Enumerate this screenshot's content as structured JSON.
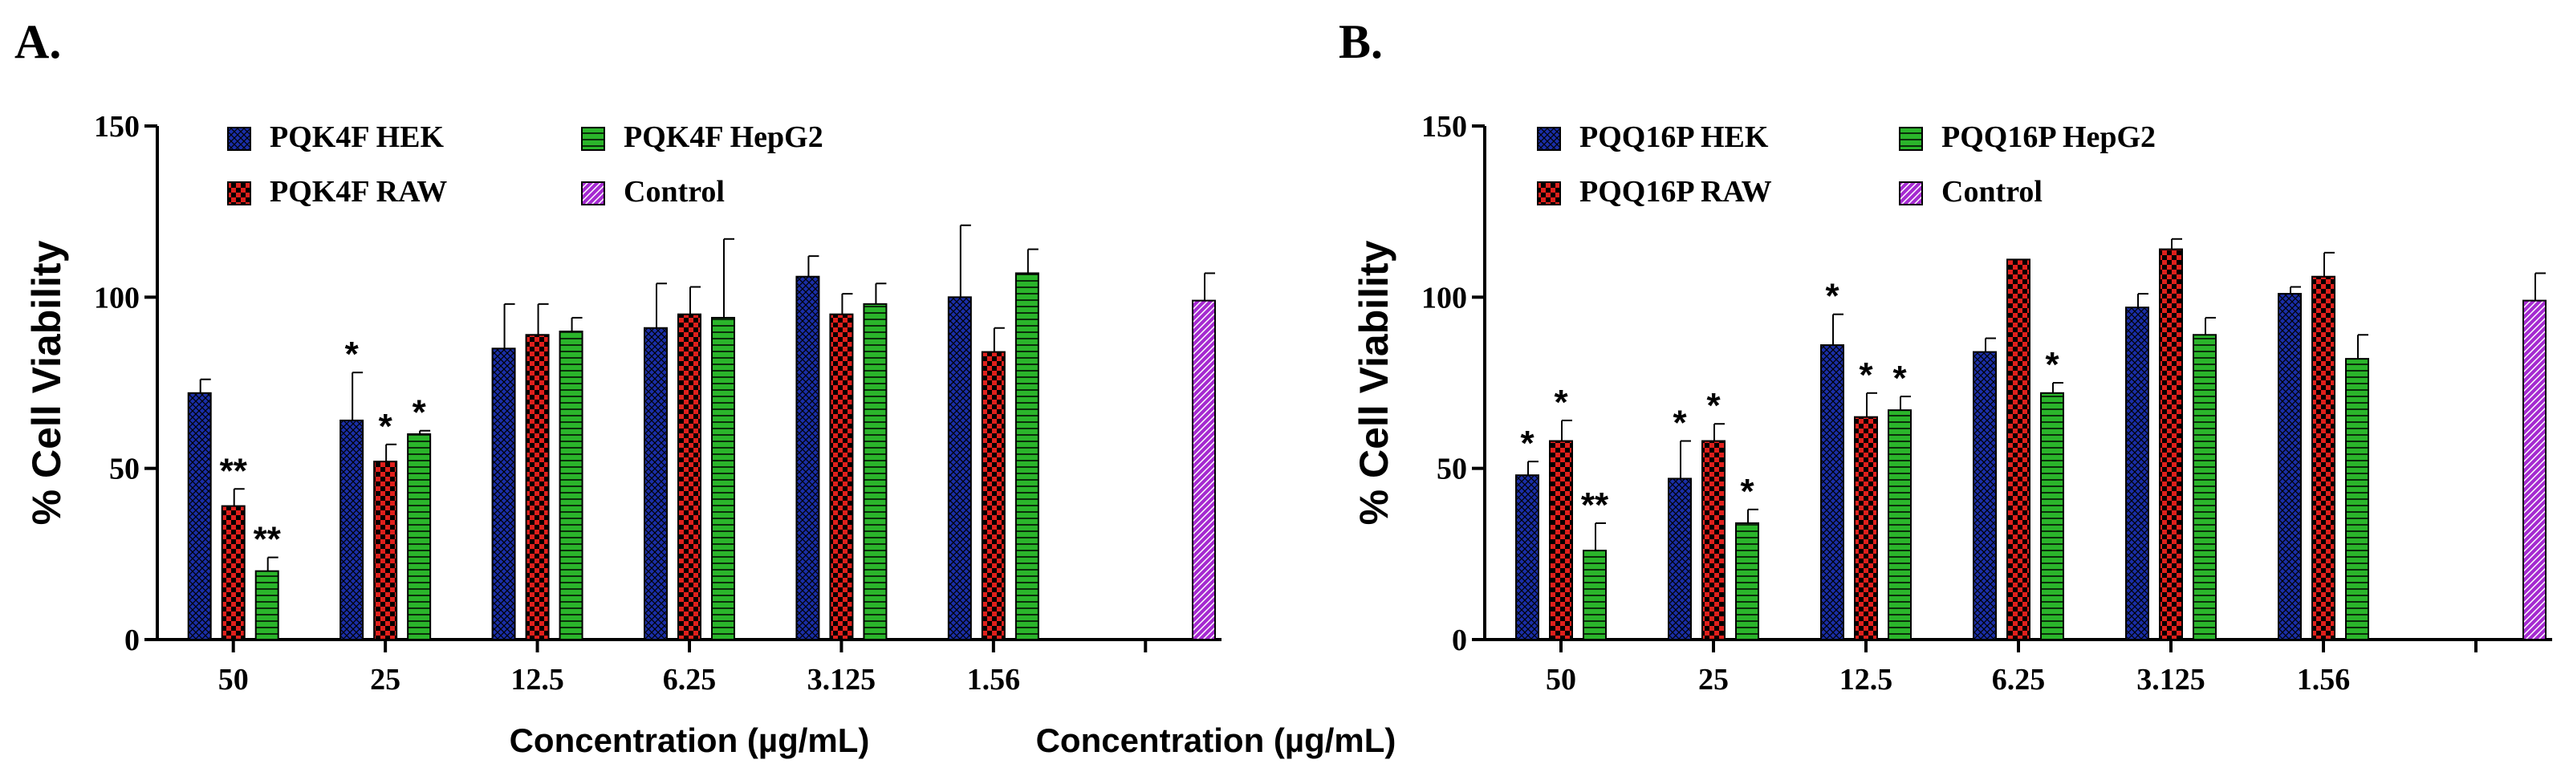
{
  "chart_data": [
    {
      "type": "bar",
      "panel_label": "A.",
      "xlabel": "Concentration (µg/mL)",
      "ylabel": "% Cell Viability",
      "ylim": [
        0,
        150
      ],
      "yticks": [
        "0",
        "50",
        "100",
        "150"
      ],
      "categories": [
        "50",
        "25",
        "12.5",
        "6.25",
        "3.125",
        "1.56"
      ],
      "series": [
        {
          "name": "PQK4F HEK",
          "color": "#1a2ea8",
          "pattern": "cross",
          "values": [
            72,
            64,
            85,
            91,
            106,
            100
          ],
          "errors": [
            4,
            14,
            13,
            13,
            6,
            21
          ],
          "significance": [
            "",
            "*",
            "",
            "",
            "",
            ""
          ]
        },
        {
          "name": "PQK4F RAW",
          "color": "#e0201c",
          "pattern": "checker",
          "values": [
            39,
            52,
            89,
            95,
            95,
            84
          ],
          "errors": [
            5,
            5,
            9,
            8,
            6,
            7
          ],
          "significance": [
            "**",
            "*",
            "",
            "",
            "",
            ""
          ]
        },
        {
          "name": "PQK4F HepG2",
          "color": "#2bb52b",
          "pattern": "hlines",
          "values": [
            20,
            60,
            90,
            94,
            98,
            107
          ],
          "errors": [
            4,
            1,
            4,
            23,
            6,
            7
          ],
          "significance": [
            "**",
            "*",
            "",
            "",
            "",
            ""
          ]
        }
      ],
      "control": {
        "name": "Control",
        "color": "#a52ad0",
        "pattern": "diag",
        "value": 99,
        "error": 8
      }
    },
    {
      "type": "bar",
      "panel_label": "B.",
      "xlabel": "Concentration (µg/mL)",
      "ylabel": "% Cell Viability",
      "ylim": [
        0,
        150
      ],
      "yticks": [
        "0",
        "50",
        "100",
        "150"
      ],
      "categories": [
        "50",
        "25",
        "12.5",
        "6.25",
        "3.125",
        "1.56"
      ],
      "series": [
        {
          "name": "PQQ16P HEK",
          "color": "#1a2ea8",
          "pattern": "cross",
          "values": [
            48,
            47,
            86,
            84,
            97,
            101
          ],
          "errors": [
            4,
            11,
            9,
            4,
            4,
            2
          ],
          "significance": [
            "*",
            "*",
            "*",
            "",
            "",
            ""
          ]
        },
        {
          "name": "PQQ16P RAW",
          "color": "#e0201c",
          "pattern": "checker",
          "values": [
            58,
            58,
            65,
            111,
            114,
            106
          ],
          "errors": [
            6,
            5,
            7,
            0,
            3,
            7
          ],
          "significance": [
            "*",
            "*",
            "*",
            "",
            "",
            ""
          ]
        },
        {
          "name": "PQQ16P HepG2",
          "color": "#2bb52b",
          "pattern": "hlines",
          "values": [
            26,
            34,
            67,
            72,
            89,
            82
          ],
          "errors": [
            8,
            4,
            4,
            3,
            5,
            7
          ],
          "significance": [
            "**",
            "*",
            "*",
            "*",
            "",
            ""
          ]
        }
      ],
      "control": {
        "name": "Control",
        "color": "#a52ad0",
        "pattern": "diag",
        "value": 99,
        "error": 8
      }
    }
  ]
}
